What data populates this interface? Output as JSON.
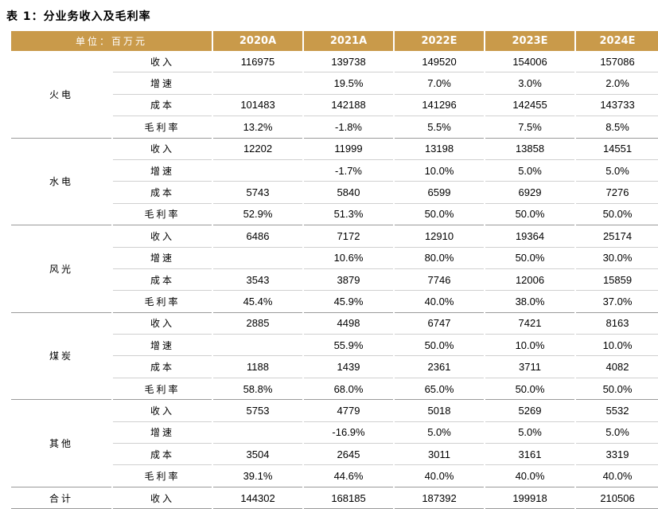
{
  "title": "表 1：分业务收入及毛利率",
  "header": {
    "unit": "单位：百万元",
    "years": [
      "2020A",
      "2021A",
      "2022E",
      "2023E",
      "2024E"
    ]
  },
  "groups": [
    {
      "name": "火电",
      "rows": [
        {
          "metric": "收入",
          "values": [
            "116975",
            "139738",
            "149520",
            "154006",
            "157086"
          ]
        },
        {
          "metric": "增速",
          "values": [
            "",
            "19.5%",
            "7.0%",
            "3.0%",
            "2.0%"
          ]
        },
        {
          "metric": "成本",
          "values": [
            "101483",
            "142188",
            "141296",
            "142455",
            "143733"
          ]
        },
        {
          "metric": "毛利率",
          "values": [
            "13.2%",
            "-1.8%",
            "5.5%",
            "7.5%",
            "8.5%"
          ]
        }
      ]
    },
    {
      "name": "水电",
      "rows": [
        {
          "metric": "收入",
          "values": [
            "12202",
            "11999",
            "13198",
            "13858",
            "14551"
          ]
        },
        {
          "metric": "增速",
          "values": [
            "",
            "-1.7%",
            "10.0%",
            "5.0%",
            "5.0%"
          ]
        },
        {
          "metric": "成本",
          "values": [
            "5743",
            "5840",
            "6599",
            "6929",
            "7276"
          ]
        },
        {
          "metric": "毛利率",
          "values": [
            "52.9%",
            "51.3%",
            "50.0%",
            "50.0%",
            "50.0%"
          ]
        }
      ]
    },
    {
      "name": "风光",
      "rows": [
        {
          "metric": "收入",
          "values": [
            "6486",
            "7172",
            "12910",
            "19364",
            "25174"
          ]
        },
        {
          "metric": "增速",
          "values": [
            "",
            "10.6%",
            "80.0%",
            "50.0%",
            "30.0%"
          ]
        },
        {
          "metric": "成本",
          "values": [
            "3543",
            "3879",
            "7746",
            "12006",
            "15859"
          ]
        },
        {
          "metric": "毛利率",
          "values": [
            "45.4%",
            "45.9%",
            "40.0%",
            "38.0%",
            "37.0%"
          ]
        }
      ]
    },
    {
      "name": "煤炭",
      "rows": [
        {
          "metric": "收入",
          "values": [
            "2885",
            "4498",
            "6747",
            "7421",
            "8163"
          ]
        },
        {
          "metric": "增速",
          "values": [
            "",
            "55.9%",
            "50.0%",
            "10.0%",
            "10.0%"
          ]
        },
        {
          "metric": "成本",
          "values": [
            "1188",
            "1439",
            "2361",
            "3711",
            "4082"
          ]
        },
        {
          "metric": "毛利率",
          "values": [
            "58.8%",
            "68.0%",
            "65.0%",
            "50.0%",
            "50.0%"
          ]
        }
      ]
    },
    {
      "name": "其他",
      "rows": [
        {
          "metric": "收入",
          "values": [
            "5753",
            "4779",
            "5018",
            "5269",
            "5532"
          ]
        },
        {
          "metric": "增速",
          "values": [
            "",
            "-16.9%",
            "5.0%",
            "5.0%",
            "5.0%"
          ]
        },
        {
          "metric": "成本",
          "values": [
            "3504",
            "2645",
            "3011",
            "3161",
            "3319"
          ]
        },
        {
          "metric": "毛利率",
          "values": [
            "39.1%",
            "44.6%",
            "40.0%",
            "40.0%",
            "40.0%"
          ]
        }
      ]
    }
  ],
  "total": {
    "name": "合计",
    "metric": "收入",
    "values": [
      "144302",
      "168185",
      "187392",
      "199918",
      "210506"
    ]
  },
  "colors": {
    "header_bg": "#c99a4a",
    "header_text": "#ffffff"
  }
}
